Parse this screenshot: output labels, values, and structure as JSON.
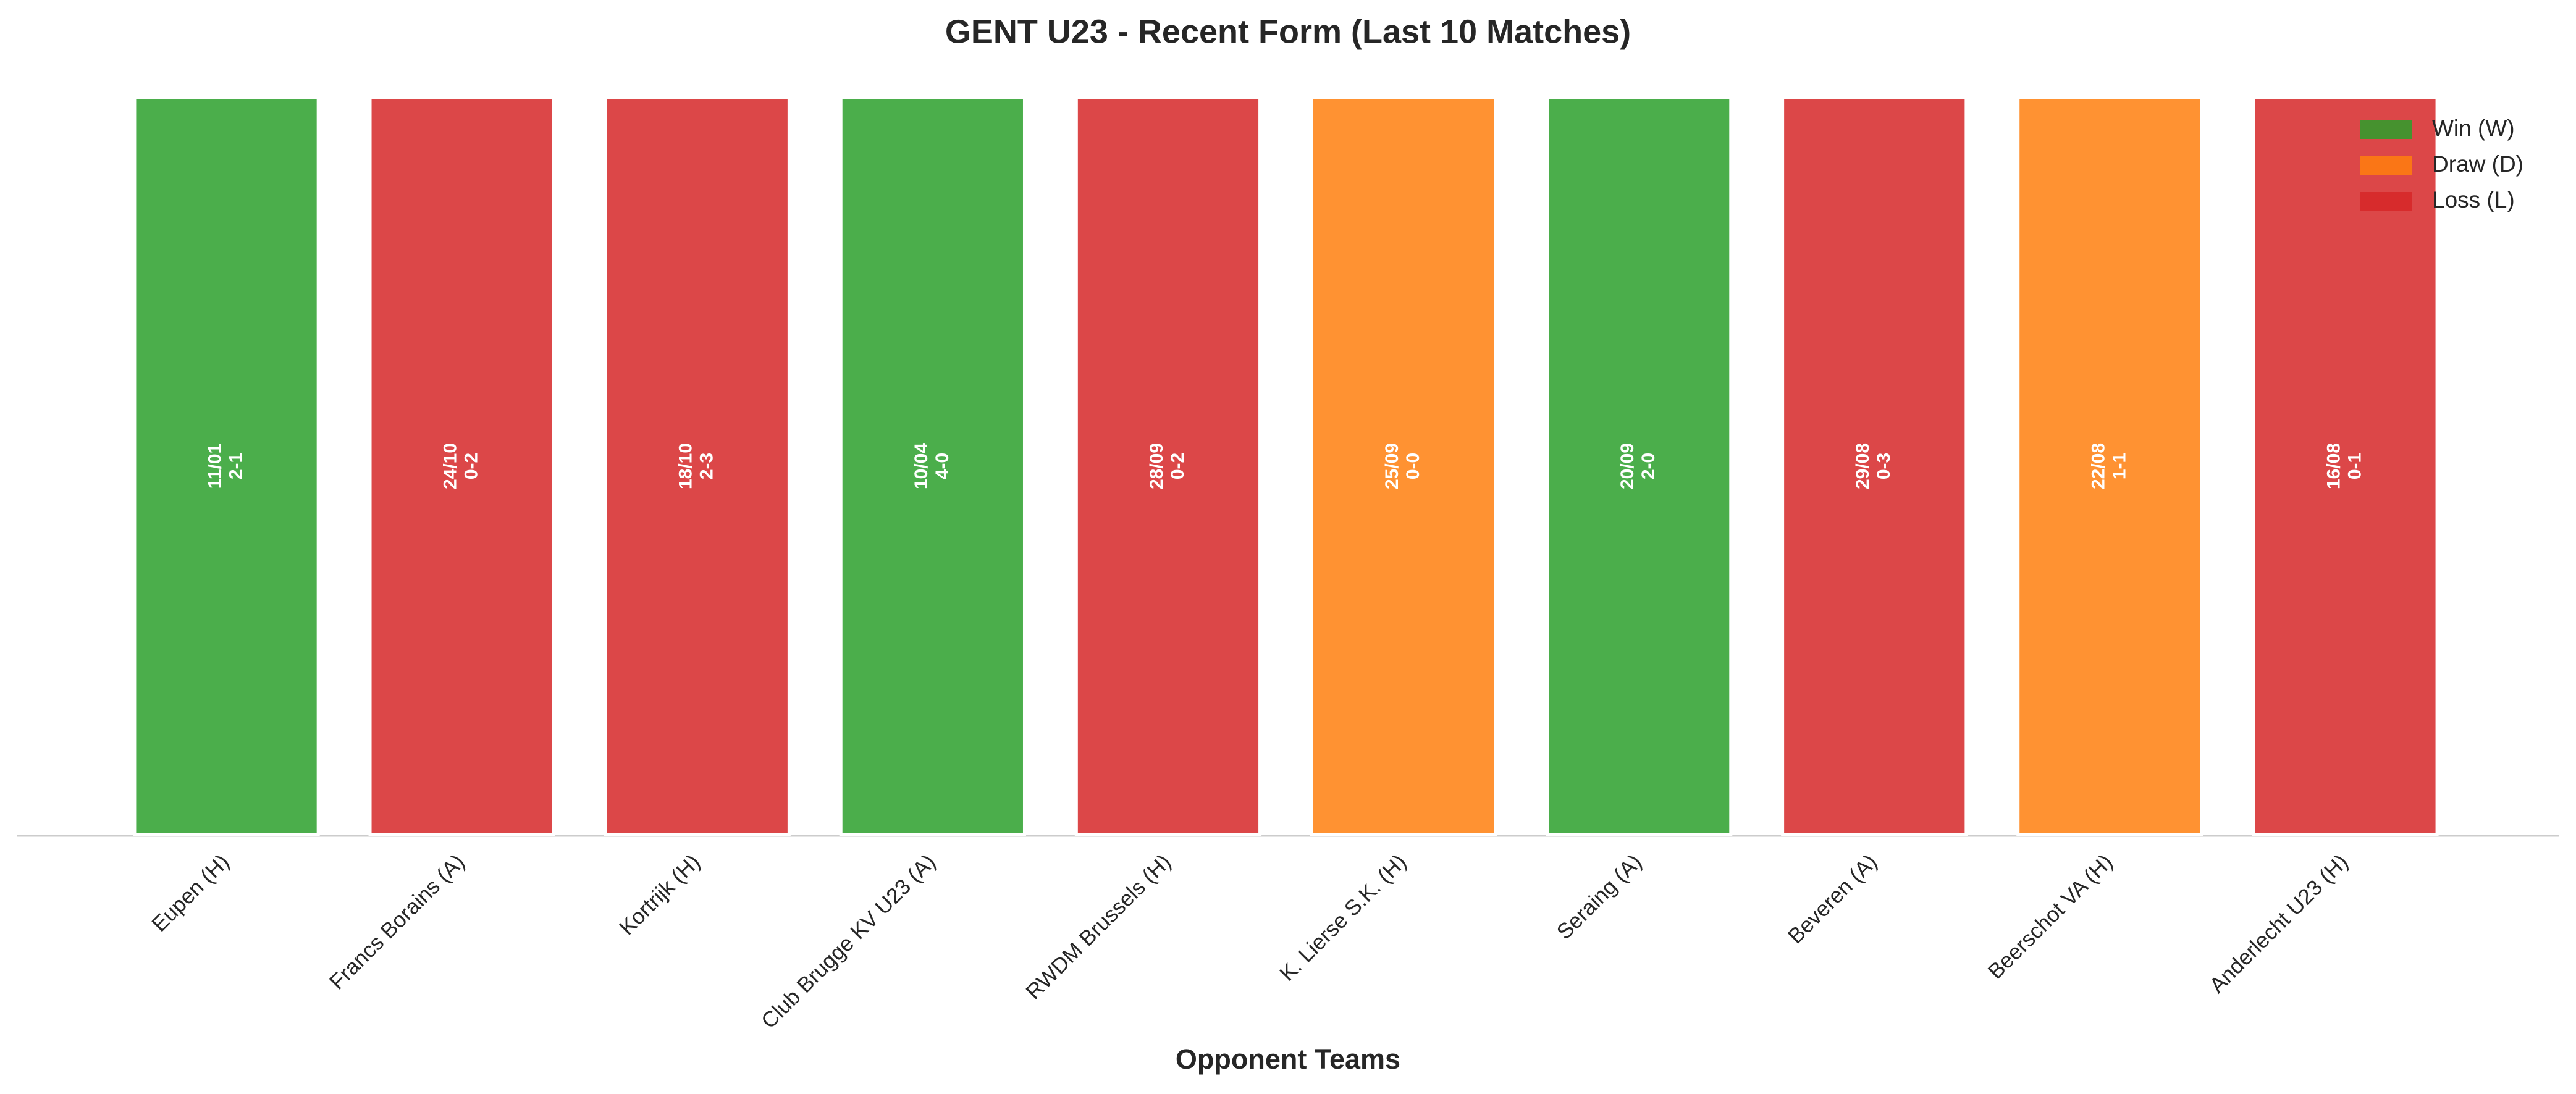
{
  "chart_data": {
    "type": "bar",
    "title": "GENT U23 - Recent Form (Last 10 Matches)",
    "x_label": "Opponent Teams",
    "categories": [
      "Eupen (H)",
      "Francs Borains (A)",
      "Kortrijk (H)",
      "Club Brugge KV U23 (A)",
      "RWDM Brussels (H)",
      "K. Lierse S.K. (H)",
      "Seraing (A)",
      "Beveren (A)",
      "Beerschot VA (H)",
      "Anderlecht U23 (H)"
    ],
    "dates": [
      "11/01",
      "24/10",
      "18/10",
      "10/04",
      "28/09",
      "25/09",
      "20/09",
      "29/08",
      "22/08",
      "16/08"
    ],
    "scores": [
      "2-1",
      "0-2",
      "2-3",
      "4-0",
      "0-2",
      "0-0",
      "2-0",
      "0-3",
      "1-1",
      "0-1"
    ],
    "series": [
      {
        "name": "Win (W)",
        "color": "#2ca02c",
        "values": [
          1,
          null,
          null,
          1,
          null,
          null,
          1,
          null,
          null,
          null
        ]
      },
      {
        "name": "Draw (D)",
        "color": "#ff7f0e",
        "values": [
          null,
          null,
          null,
          null,
          null,
          1,
          null,
          null,
          1,
          null
        ]
      },
      {
        "name": "Loss (L)",
        "color": "#d62728",
        "values": [
          null,
          1,
          1,
          null,
          1,
          null,
          null,
          1,
          null,
          1
        ]
      }
    ],
    "ylim": [
      0,
      1
    ],
    "legend": "upper right"
  }
}
